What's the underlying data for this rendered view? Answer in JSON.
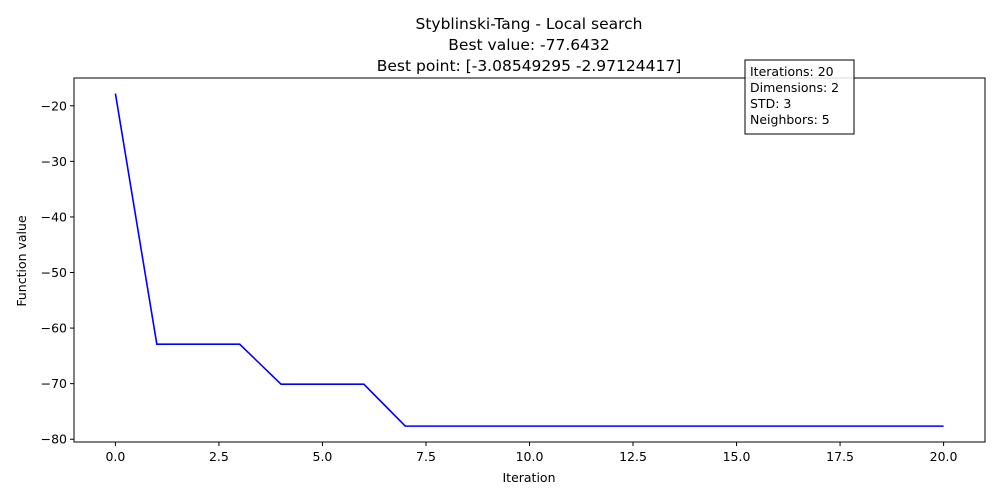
{
  "chart_data": {
    "type": "line",
    "title_lines": [
      "Styblinski-Tang - Local search",
      "Best value: -77.6432",
      "Best point: [-3.08549295 -2.97124417]"
    ],
    "xlabel": "Iteration",
    "ylabel": "Function value",
    "xlim": [
      -1.0,
      21.0
    ],
    "ylim": [
      -80.5,
      -15.0
    ],
    "xticks": [
      0.0,
      2.5,
      5.0,
      7.5,
      10.0,
      12.5,
      15.0,
      17.5,
      20.0
    ],
    "xtick_labels": [
      "0.0",
      "2.5",
      "5.0",
      "7.5",
      "10.0",
      "12.5",
      "15.0",
      "17.5",
      "20.0"
    ],
    "yticks": [
      -20,
      -30,
      -40,
      -50,
      -60,
      -70,
      -80
    ],
    "ytick_labels": [
      "−20",
      "−30",
      "−40",
      "−50",
      "−60",
      "−70",
      "−80"
    ],
    "grid": false,
    "series": [
      {
        "color": "#0000ff",
        "x": [
          0,
          1,
          2,
          3,
          4,
          5,
          6,
          7,
          8,
          9,
          10,
          11,
          12,
          13,
          14,
          15,
          16,
          17,
          18,
          19,
          20
        ],
        "y": [
          -17.8,
          -62.9,
          -62.9,
          -62.9,
          -70.1,
          -70.1,
          -70.1,
          -77.6432,
          -77.6432,
          -77.6432,
          -77.6432,
          -77.6432,
          -77.6432,
          -77.6432,
          -77.6432,
          -77.6432,
          -77.6432,
          -77.6432,
          -77.6432,
          -77.6432,
          -77.6432
        ]
      }
    ],
    "info_box": {
      "placement": "top-right",
      "lines": [
        "Iterations: 20",
        "Dimensions: 2",
        "STD: 3",
        "Neighbors: 5"
      ]
    }
  }
}
